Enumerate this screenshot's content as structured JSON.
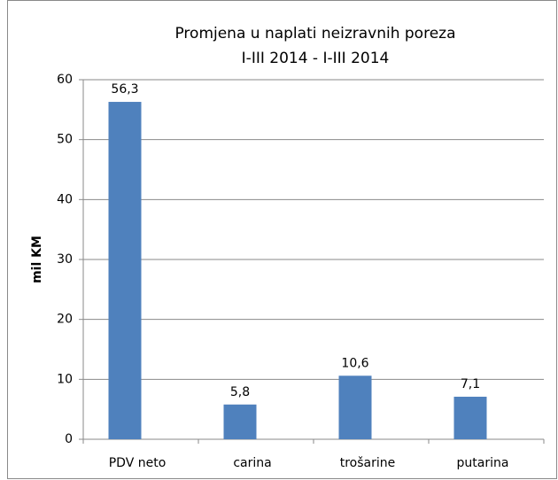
{
  "chart_data": {
    "type": "bar",
    "title": "Promjena u naplati neizravnih poreza",
    "subtitle": "I-III 2014 - I-III 2014",
    "y_label": "mil KM",
    "categories": [
      "PDV neto",
      "carina",
      "trošarine",
      "putarina"
    ],
    "values": [
      56.3,
      5.8,
      10.6,
      7.1
    ],
    "value_labels": [
      "56,3",
      "5,8",
      "10,6",
      "7,1"
    ],
    "color": "#4f81bd",
    "ylim": [
      0,
      60
    ],
    "yticks": [
      0,
      10,
      20,
      30,
      40,
      50,
      60
    ],
    "grid": true
  }
}
